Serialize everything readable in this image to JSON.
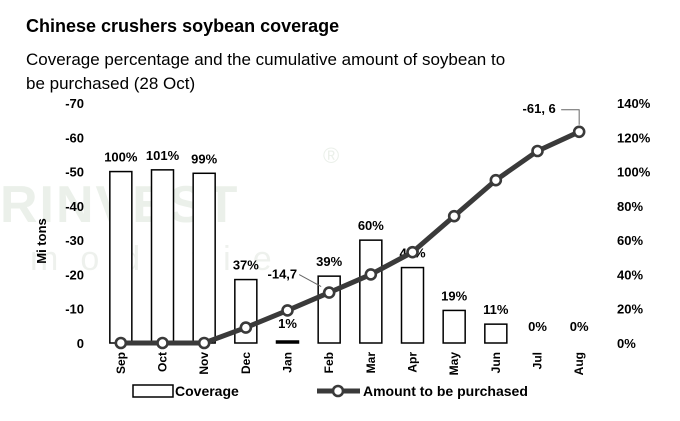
{
  "title": "Chinese crushers soybean coverage",
  "subtitle": "Coverage percentage and the cumulative amount of soybean to be purchased (28 Oct)",
  "watermark": {
    "main": "RINVEST",
    "sub": "moditie",
    "reg": "®"
  },
  "chart_data": {
    "type": "bar",
    "categories": [
      "Sep",
      "Oct",
      "Nov",
      "Dec",
      "Jan",
      "Feb",
      "Mar",
      "Apr",
      "May",
      "Jun",
      "Jul",
      "Aug"
    ],
    "ylabel": "Mi tons",
    "ylim": [
      0,
      -70
    ],
    "left_ticks": [
      "-70",
      "-60",
      "-50",
      "-40",
      "-30",
      "-20",
      "-10",
      "0"
    ],
    "y2lim": [
      0,
      140
    ],
    "right_ticks": [
      "140%",
      "120%",
      "100%",
      "80%",
      "60%",
      "40%",
      "20%",
      "0%"
    ],
    "grid": false,
    "legend_position": "bottom",
    "series": [
      {
        "name": "Coverage",
        "type": "bar",
        "axis": "right",
        "color": "#ffffff",
        "values": [
          100,
          101,
          99,
          37,
          1,
          39,
          60,
          44,
          19,
          11,
          0,
          0
        ],
        "labels": [
          "100%",
          "101%",
          "99%",
          "37%",
          "1%",
          "39%",
          "60%",
          "44%",
          "19%",
          "11%",
          "0%",
          "0%"
        ]
      },
      {
        "name": "Amount to be purchased",
        "type": "line",
        "axis": "left",
        "color": "#3a3a3a",
        "values": [
          0,
          0,
          0,
          -4.5,
          -9.5,
          -14.7,
          -20,
          -26.5,
          -37,
          -47.5,
          -56,
          -61.6
        ]
      }
    ],
    "annotations": [
      {
        "text": "-14,7",
        "category": "Feb"
      },
      {
        "text": "-61, 6",
        "category": "Aug"
      }
    ]
  }
}
